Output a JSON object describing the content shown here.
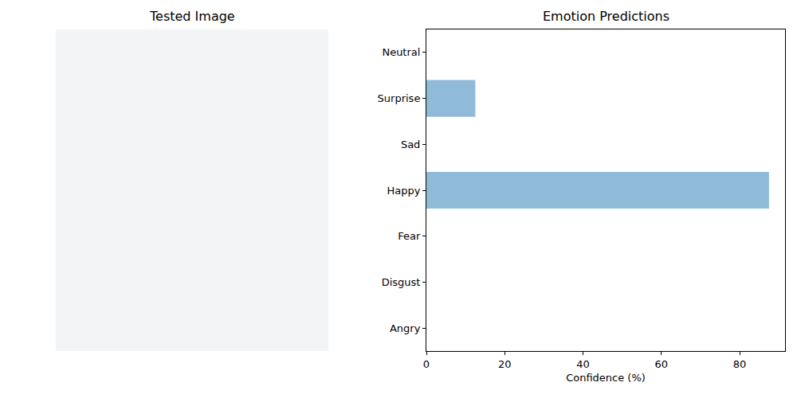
{
  "image_panel": {
    "title": "Tested Image"
  },
  "chart_data": {
    "type": "bar",
    "orientation": "horizontal",
    "title": "Emotion Predictions",
    "x_label": "Confidence (%)",
    "categories": [
      "Angry",
      "Disgust",
      "Fear",
      "Happy",
      "Sad",
      "Surprise",
      "Neutral"
    ],
    "values": [
      0,
      0,
      0,
      87.5,
      0,
      12.5,
      0
    ],
    "color": "#8fbbd9",
    "xlim": [
      0,
      91.6
    ],
    "xticks": [
      0,
      20,
      40,
      60,
      80
    ],
    "grid": false
  }
}
